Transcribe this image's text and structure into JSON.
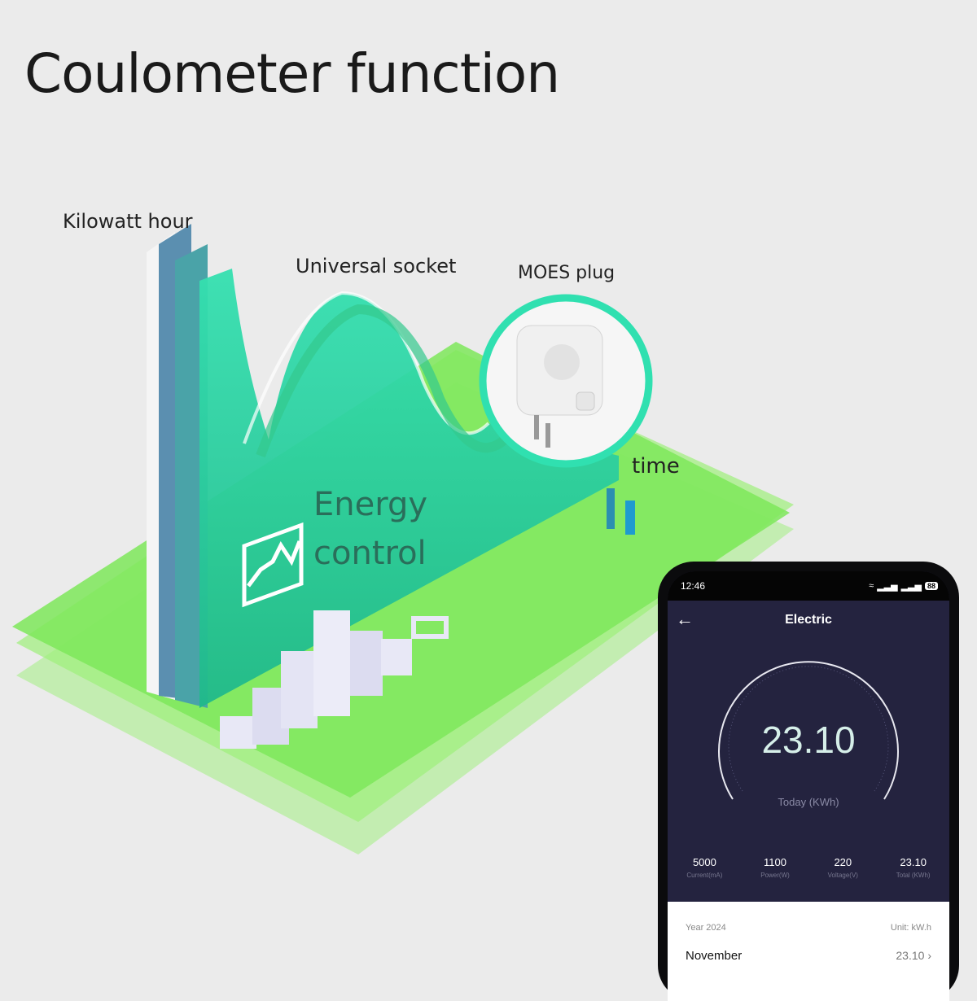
{
  "title": "Coulometer function",
  "labels": {
    "kilowatt_hour": "Kilowatt hour",
    "universal_socket": "Universal socket",
    "moes_plug": "MOES plug",
    "time": "time",
    "energy_line1": "Energy",
    "energy_line2": "control"
  },
  "colors": {
    "accent": "#2bd4a0",
    "plane": "#7ee85a",
    "screen": "#24233f"
  },
  "phone": {
    "status": {
      "time": "12:46",
      "battery": "88",
      "icons": [
        "wifi-icon",
        "signal-icon",
        "signal-icon",
        "battery-icon"
      ]
    },
    "nav": {
      "back_icon": "arrow-left-icon",
      "title": "Electric"
    },
    "gauge": {
      "value": "23.10",
      "label": "Today (KWh)"
    },
    "stats": [
      {
        "value": "5000",
        "label": "Current(mA)"
      },
      {
        "value": "1100",
        "label": "Power(W)"
      },
      {
        "value": "220",
        "label": "Voltage(V)"
      },
      {
        "value": "23.10",
        "label": "Total (KWh)"
      }
    ],
    "card": {
      "year": "Year 2024",
      "unit": "Unit: kW.h",
      "month": "November",
      "month_value": "23.10"
    }
  }
}
